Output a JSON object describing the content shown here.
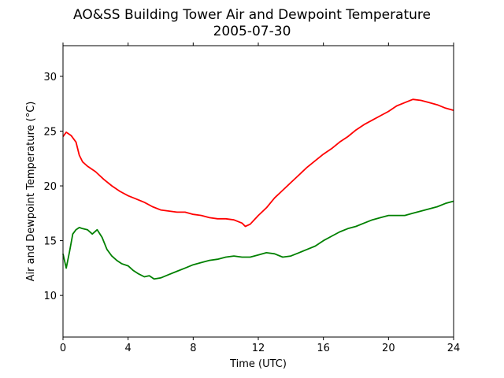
{
  "chart_data": {
    "type": "line",
    "title": "AO&SS Building Tower Air and Dewpoint Temperature",
    "subtitle": "2005-07-30",
    "xlabel": "Time (UTC)",
    "ylabel": "Air and Dewpoint Temperature (°C)",
    "xlim": [
      0,
      24
    ],
    "ylim": [
      6.2,
      32.8
    ],
    "xticks": [
      0,
      4,
      8,
      12,
      16,
      20,
      24
    ],
    "yticks": [
      10,
      15,
      20,
      25,
      30
    ],
    "grid": false,
    "legend": "none",
    "series": [
      {
        "color": "#ff0000",
        "x": [
          0,
          0.2,
          0.5,
          0.8,
          1.0,
          1.2,
          1.5,
          2.0,
          2.5,
          3.0,
          3.5,
          4.0,
          4.5,
          5.0,
          5.5,
          6.0,
          6.5,
          7.0,
          7.5,
          8.0,
          8.5,
          9.0,
          9.5,
          10.0,
          10.5,
          11.0,
          11.2,
          11.5,
          12.0,
          12.5,
          13.0,
          13.5,
          14.0,
          14.5,
          15.0,
          15.5,
          16.0,
          16.5,
          17.0,
          17.5,
          18.0,
          18.5,
          19.0,
          19.5,
          20.0,
          20.5,
          21.0,
          21.5,
          22.0,
          22.5,
          23.0,
          23.5,
          24.0
        ],
        "y": [
          24.5,
          24.9,
          24.6,
          24.0,
          22.8,
          22.2,
          21.8,
          21.3,
          20.6,
          20.0,
          19.5,
          19.1,
          18.8,
          18.5,
          18.1,
          17.8,
          17.7,
          17.6,
          17.6,
          17.4,
          17.3,
          17.1,
          17.0,
          17.0,
          16.9,
          16.6,
          16.3,
          16.5,
          17.3,
          18.0,
          18.9,
          19.6,
          20.3,
          21.0,
          21.7,
          22.3,
          22.9,
          23.4,
          24.0,
          24.5,
          25.1,
          25.6,
          26.0,
          26.4,
          26.8,
          27.3,
          27.6,
          27.9,
          27.8,
          27.6,
          27.4,
          27.1,
          26.9
        ]
      },
      {
        "color": "#008000",
        "x": [
          0,
          0.2,
          0.4,
          0.6,
          0.8,
          1.0,
          1.2,
          1.5,
          1.8,
          2.1,
          2.4,
          2.7,
          3.0,
          3.3,
          3.6,
          4.0,
          4.3,
          4.6,
          5.0,
          5.3,
          5.6,
          6.0,
          6.5,
          7.0,
          7.5,
          8.0,
          8.5,
          9.0,
          9.5,
          10.0,
          10.5,
          11.0,
          11.5,
          12.0,
          12.5,
          13.0,
          13.5,
          14.0,
          14.5,
          15.0,
          15.5,
          16.0,
          16.5,
          17.0,
          17.5,
          18.0,
          18.5,
          19.0,
          19.5,
          20.0,
          20.5,
          21.0,
          21.5,
          22.0,
          22.5,
          23.0,
          23.5,
          24.0
        ],
        "y": [
          13.8,
          12.5,
          14.0,
          15.6,
          16.0,
          16.2,
          16.1,
          16.0,
          15.6,
          16.0,
          15.3,
          14.2,
          13.6,
          13.2,
          12.9,
          12.7,
          12.3,
          12.0,
          11.7,
          11.8,
          11.5,
          11.6,
          11.9,
          12.2,
          12.5,
          12.8,
          13.0,
          13.2,
          13.3,
          13.5,
          13.6,
          13.5,
          13.5,
          13.7,
          13.9,
          13.8,
          13.5,
          13.6,
          13.9,
          14.2,
          14.5,
          15.0,
          15.4,
          15.8,
          16.1,
          16.3,
          16.6,
          16.9,
          17.1,
          17.3,
          17.3,
          17.3,
          17.5,
          17.7,
          17.9,
          18.1,
          18.4,
          18.6
        ]
      }
    ]
  }
}
